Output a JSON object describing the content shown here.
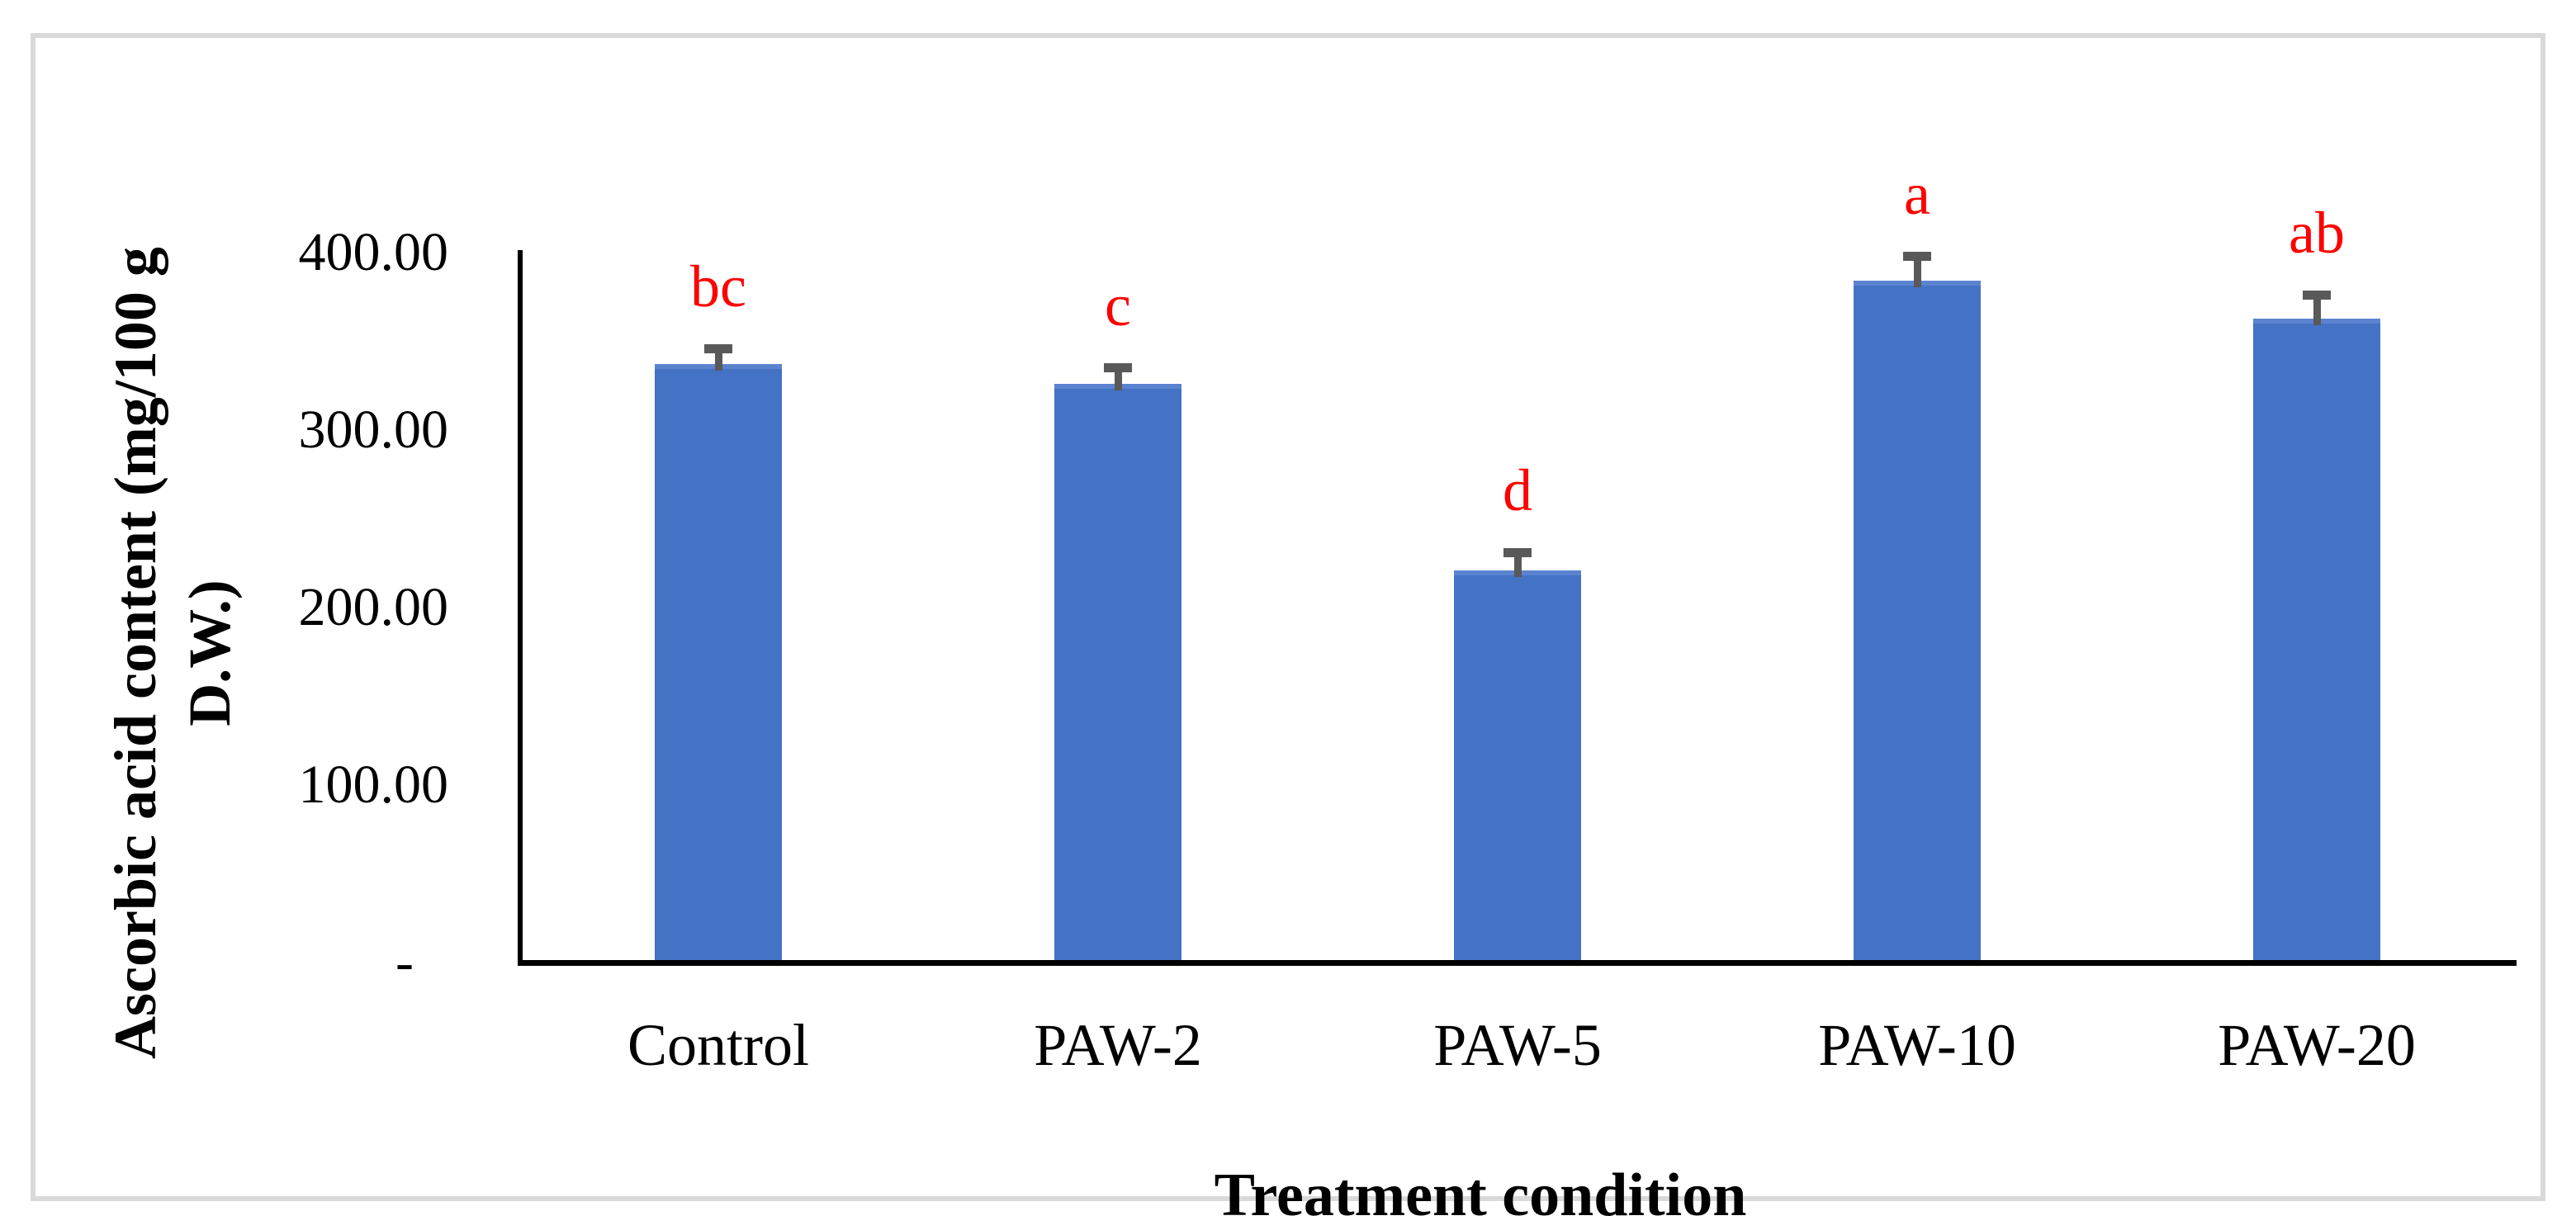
{
  "figure": {
    "y_axis_title_line1": "Ascorbic acid content (mg/100 g",
    "y_axis_title_line2": "D.W.)",
    "x_axis_title": "Treatment condition"
  },
  "chart_data": {
    "type": "bar",
    "title": "",
    "xlabel": "Treatment condition",
    "ylabel": "Ascorbic acid content (mg/100 g D.W.)",
    "categories": [
      "Control",
      "PAW-2",
      "PAW-5",
      "PAW-10",
      "PAW-20"
    ],
    "values": [
      337,
      326,
      221,
      384,
      363
    ],
    "error_bars_plus": [
      9,
      9,
      10,
      14,
      13
    ],
    "significance_letters": [
      "bc",
      "c",
      "d",
      "a",
      "ab"
    ],
    "ylim": [
      0,
      400
    ],
    "y_ticks": [
      {
        "value": 400,
        "label": "400.00"
      },
      {
        "value": 300,
        "label": "300.00"
      },
      {
        "value": 200,
        "label": "200.00"
      },
      {
        "value": 100,
        "label": "100.00"
      },
      {
        "value": 0,
        "label": "-"
      }
    ],
    "grid": false,
    "legend": false,
    "colors": {
      "bar_fill": "#4472C4",
      "bar_top_edge": "#5b83cf",
      "error_bar": "#595959",
      "significance_letter": "#FE0000",
      "axis_line": "#000000",
      "text": "#000000",
      "frame_border": "#D9D9D9"
    }
  }
}
